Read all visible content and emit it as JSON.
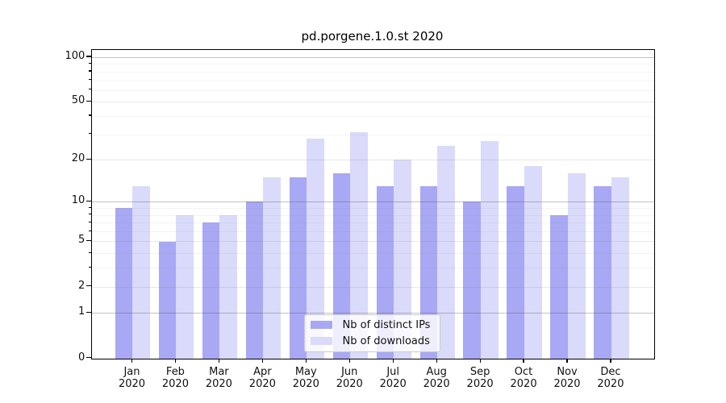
{
  "title": "pd.porgene.1.0.st 2020",
  "legend": {
    "items": [
      {
        "label": "Nb of distinct IPs"
      },
      {
        "label": "Nb of downloads"
      }
    ]
  },
  "chart_data": {
    "type": "bar",
    "title": "pd.porgene.1.0.st 2020",
    "categories": [
      "Jan 2020",
      "Feb 2020",
      "Mar 2020",
      "Apr 2020",
      "May 2020",
      "Jun 2020",
      "Jul 2020",
      "Aug 2020",
      "Sep 2020",
      "Oct 2020",
      "Nov 2020",
      "Dec 2020"
    ],
    "x_tick_months": [
      "Jan",
      "Feb",
      "Mar",
      "Apr",
      "May",
      "Jun",
      "Jul",
      "Aug",
      "Sep",
      "Oct",
      "Nov",
      "Dec"
    ],
    "x_tick_year": "2020",
    "series": [
      {
        "name": "Nb of distinct IPs",
        "color": "#a8a8f4",
        "values": [
          9,
          5,
          7,
          10,
          15,
          16,
          13,
          13,
          10,
          13,
          8,
          13
        ]
      },
      {
        "name": "Nb of downloads",
        "color": "#dadafb",
        "values": [
          13,
          8,
          8,
          15,
          28,
          31,
          20,
          25,
          27,
          18,
          16,
          15
        ]
      }
    ],
    "xlabel": "",
    "ylabel": "",
    "y_scale": "log1p",
    "ylim": [
      0,
      111
    ],
    "y_ticks_major": [
      0,
      1,
      2,
      5,
      10,
      20,
      50,
      100
    ],
    "y_ticks_strong": [
      1,
      10,
      100
    ],
    "y_ticks_minor": [
      3,
      4,
      6,
      7,
      8,
      9,
      30,
      40,
      60,
      70,
      80,
      90
    ],
    "grid": true,
    "legend_position": "lower center"
  }
}
